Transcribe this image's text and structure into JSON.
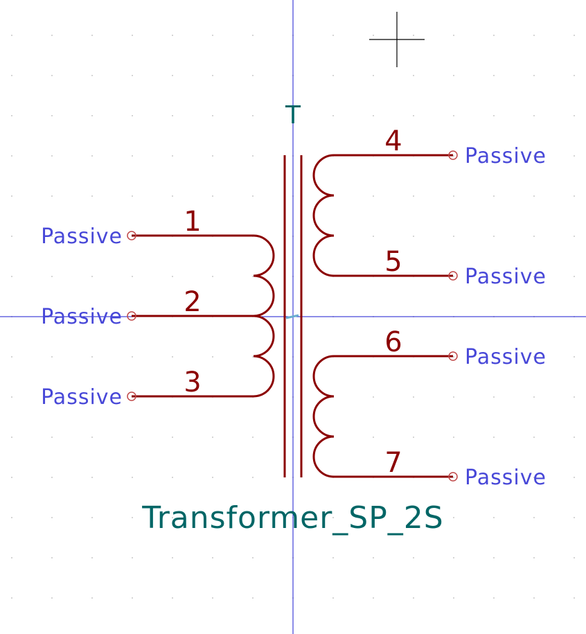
{
  "symbol": {
    "reference": "T",
    "value": "Transformer_SP_2S"
  },
  "pins": [
    {
      "number": "1",
      "type": "Passive"
    },
    {
      "number": "2",
      "type": "Passive"
    },
    {
      "number": "3",
      "type": "Passive"
    },
    {
      "number": "4",
      "type": "Passive"
    },
    {
      "number": "5",
      "type": "Passive"
    },
    {
      "number": "6",
      "type": "Passive"
    },
    {
      "number": "7",
      "type": "Passive"
    }
  ],
  "colors": {
    "body": "#8b0000",
    "pin_type": "#4848d8",
    "field_text": "#006666",
    "axis": "#1a1ad0"
  }
}
